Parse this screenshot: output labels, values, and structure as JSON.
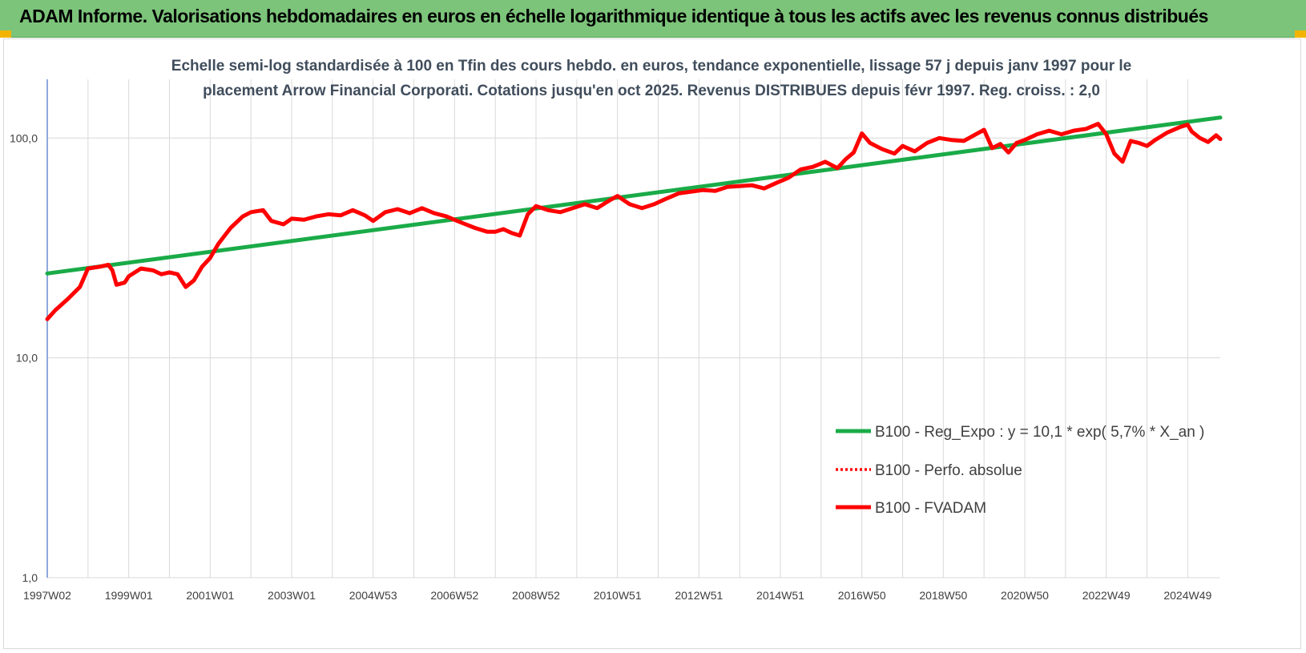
{
  "header": {
    "title": "ADAM Informe. Valorisations hebdomadaires en euros en échelle logarithmique identique à tous les actifs avec les revenus connus distribués"
  },
  "chart_data": {
    "type": "line",
    "title": "",
    "subtitle_lines": [
      "Echelle semi-log standardisée à 100 en Tfin des cours hebdo. en euros, tendance exponentielle, lissage 57 j depuis janv 1997 pour le",
      "placement Arrow Financial Corporati. Cotations jusqu'en oct 2025. Revenus DISTRIBUES depuis févr 1997. Reg. croiss. : 2,0"
    ],
    "y_scale": "log",
    "ylim": [
      1,
      185
    ],
    "y_ticks": [
      {
        "value": 1,
        "label": "1,0"
      },
      {
        "value": 10,
        "label": "10,0"
      },
      {
        "value": 100,
        "label": "100,0"
      }
    ],
    "xlim": [
      1997.0,
      2025.8
    ],
    "x_ticks": [
      {
        "value": 1997.0,
        "label": "1997W02"
      },
      {
        "value": 1999.0,
        "label": "1999W01"
      },
      {
        "value": 2001.0,
        "label": "2001W01"
      },
      {
        "value": 2003.0,
        "label": "2003W01"
      },
      {
        "value": 2005.0,
        "label": "2004W53"
      },
      {
        "value": 2007.0,
        "label": "2006W52"
      },
      {
        "value": 2009.0,
        "label": "2008W52"
      },
      {
        "value": 2011.0,
        "label": "2010W51"
      },
      {
        "value": 2013.0,
        "label": "2012W51"
      },
      {
        "value": 2015.0,
        "label": "2014W51"
      },
      {
        "value": 2017.0,
        "label": "2016W50"
      },
      {
        "value": 2019.0,
        "label": "2018W50"
      },
      {
        "value": 2021.0,
        "label": "2020W50"
      },
      {
        "value": 2023.0,
        "label": "2022W49"
      },
      {
        "value": 2025.0,
        "label": "2024W49"
      }
    ],
    "minor_grid_years": [
      1998,
      2000,
      2002,
      2004,
      2006,
      2008,
      2010,
      2012,
      2014,
      2016,
      2018,
      2020,
      2022,
      2024
    ],
    "grid": true,
    "legend_position": "right",
    "series": [
      {
        "name": "B100 - Reg_Expo : y = 10,1 * exp( 5,7% *  X_an )",
        "color": "#1aab48",
        "style": "solid",
        "x": [
          1997.0,
          2025.8
        ],
        "y": [
          24.2,
          124.0
        ]
      },
      {
        "name": "B100 - Perfo. absolue",
        "color": "#ff0000",
        "style": "dotted",
        "x": [],
        "y": []
      },
      {
        "name": "B100 - FVADAM",
        "color": "#ff0000",
        "style": "solid",
        "x": [
          1997.0,
          1997.2,
          1997.5,
          1997.8,
          1998.0,
          1998.3,
          1998.5,
          1998.6,
          1998.7,
          1998.9,
          1999.0,
          1999.3,
          1999.6,
          1999.8,
          2000.0,
          2000.2,
          2000.4,
          2000.6,
          2000.8,
          2001.0,
          2001.2,
          2001.5,
          2001.8,
          2002.0,
          2002.3,
          2002.5,
          2002.8,
          2003.0,
          2003.3,
          2003.6,
          2003.9,
          2004.2,
          2004.5,
          2004.8,
          2005.0,
          2005.3,
          2005.6,
          2005.9,
          2006.2,
          2006.5,
          2006.8,
          2007.0,
          2007.2,
          2007.5,
          2007.8,
          2008.0,
          2008.2,
          2008.4,
          2008.6,
          2008.8,
          2009.0,
          2009.3,
          2009.6,
          2009.9,
          2010.2,
          2010.5,
          2010.8,
          2011.0,
          2011.3,
          2011.6,
          2011.9,
          2012.2,
          2012.5,
          2012.8,
          2013.1,
          2013.4,
          2013.7,
          2014.0,
          2014.3,
          2014.6,
          2014.9,
          2015.2,
          2015.5,
          2015.8,
          2016.1,
          2016.4,
          2016.6,
          2016.8,
          2017.0,
          2017.2,
          2017.5,
          2017.8,
          2018.0,
          2018.3,
          2018.6,
          2018.9,
          2019.2,
          2019.5,
          2019.8,
          2020.0,
          2020.2,
          2020.4,
          2020.6,
          2020.8,
          2021.0,
          2021.3,
          2021.6,
          2021.9,
          2022.2,
          2022.5,
          2022.8,
          2023.0,
          2023.2,
          2023.4,
          2023.6,
          2023.8,
          2024.0,
          2024.2,
          2024.5,
          2024.8,
          2025.0,
          2025.1,
          2025.3,
          2025.5,
          2025.7,
          2025.8
        ],
        "y": [
          15.0,
          16.5,
          18.5,
          21.0,
          25.5,
          26.0,
          26.5,
          25.0,
          21.5,
          22.0,
          23.5,
          25.5,
          25.0,
          24.0,
          24.5,
          24.0,
          21.0,
          22.5,
          26.0,
          28.5,
          33.0,
          39.0,
          44.0,
          46.0,
          47.0,
          42.0,
          40.5,
          43.0,
          42.5,
          44.0,
          45.0,
          44.5,
          47.0,
          44.5,
          42.0,
          46.0,
          47.5,
          45.5,
          48.0,
          45.5,
          44.0,
          42.5,
          41.0,
          39.0,
          37.5,
          37.5,
          38.5,
          37.0,
          36.0,
          45.0,
          49.0,
          47.0,
          46.0,
          48.0,
          50.0,
          48.0,
          52.0,
          54.5,
          50.0,
          48.0,
          50.0,
          53.0,
          56.0,
          57.0,
          58.0,
          57.5,
          60.0,
          60.5,
          61.0,
          59.0,
          62.5,
          66.0,
          72.0,
          74.0,
          78.0,
          73.0,
          80.0,
          86.0,
          105.0,
          95.0,
          89.0,
          85.0,
          92.0,
          87.0,
          95.0,
          100.0,
          98.0,
          97.0,
          104.0,
          109.0,
          90.0,
          94.0,
          86.0,
          95.0,
          98.0,
          104.0,
          108.0,
          104.0,
          108.0,
          110.0,
          116.0,
          104.0,
          85.0,
          78.0,
          97.0,
          95.0,
          92.0,
          98.0,
          106.0,
          112.0,
          115.0,
          107.0,
          100.0,
          96.0,
          103.0,
          99.0
        ]
      }
    ]
  }
}
